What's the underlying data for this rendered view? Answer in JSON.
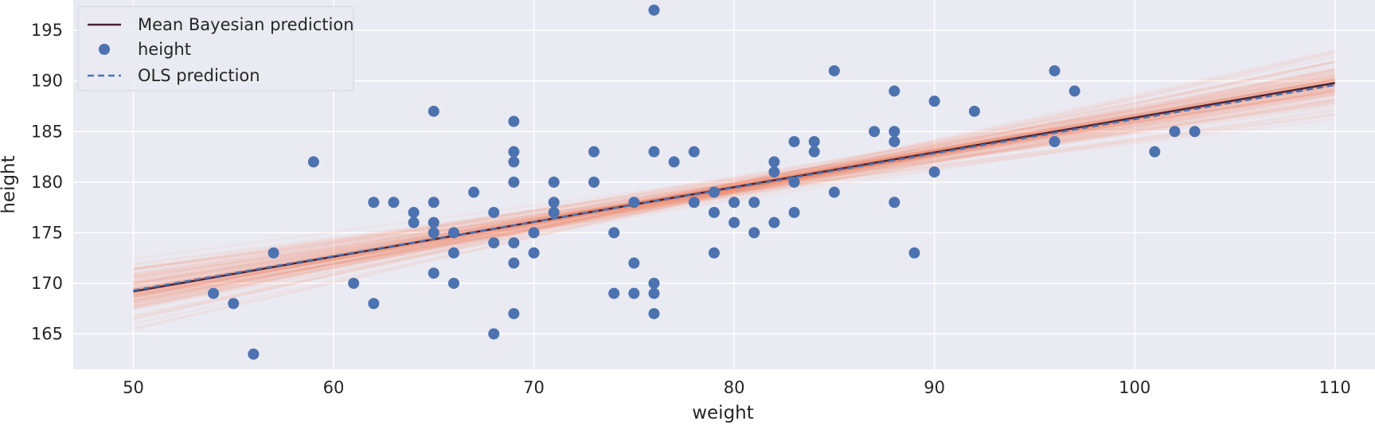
{
  "chart_data": {
    "type": "scatter",
    "title": "",
    "xlabel": "weight",
    "ylabel": "height",
    "xlim": [
      47,
      112
    ],
    "ylim": [
      161.5,
      198
    ],
    "xticks": [
      50,
      60,
      70,
      80,
      90,
      100,
      110
    ],
    "yticks": [
      165,
      170,
      175,
      180,
      185,
      190,
      195
    ],
    "grid": true,
    "legend_position": "top-left",
    "legend": {
      "mean_label": "Mean Bayesian prediction",
      "points_label": "height",
      "ols_label": "OLS prediction"
    },
    "colors": {
      "background": "#eaeaf2",
      "grid": "#ffffff",
      "points": "#4c72b0",
      "mean_line": "#4a2436",
      "ols_line": "#4c72b0",
      "posterior_samples": "#ff7a50"
    },
    "mean_line": {
      "x": [
        50,
        110
      ],
      "y": [
        169.2,
        189.8
      ]
    },
    "ols_line": {
      "x": [
        50,
        110
      ],
      "y": [
        169.3,
        189.6
      ]
    },
    "posterior_samples": {
      "count": 120,
      "slope_mean": 0.343,
      "slope_sd": 0.04,
      "intercept_at_80_sd": 0.45
    },
    "points": {
      "name": "height",
      "x": [
        54,
        55,
        56,
        57,
        59,
        61,
        62,
        62,
        63,
        64,
        64,
        65,
        65,
        65,
        65,
        65,
        66,
        66,
        66,
        67,
        68,
        68,
        68,
        69,
        69,
        69,
        69,
        69,
        69,
        69,
        70,
        70,
        71,
        71,
        71,
        73,
        73,
        74,
        74,
        75,
        75,
        75,
        76,
        76,
        76,
        76,
        76,
        77,
        78,
        78,
        79,
        79,
        79,
        80,
        80,
        81,
        81,
        82,
        82,
        82,
        83,
        83,
        83,
        84,
        84,
        85,
        85,
        87,
        88,
        88,
        88,
        88,
        89,
        90,
        90,
        92,
        96,
        96,
        97,
        101,
        102,
        103
      ],
      "y": [
        169,
        168,
        163,
        173,
        182,
        170,
        178,
        168,
        178,
        177,
        176,
        187,
        178,
        176,
        175,
        171,
        175,
        173,
        170,
        179,
        177,
        174,
        165,
        186,
        183,
        182,
        180,
        174,
        172,
        167,
        175,
        173,
        180,
        178,
        177,
        183,
        180,
        175,
        169,
        178,
        172,
        169,
        197,
        183,
        170,
        169,
        167,
        182,
        183,
        178,
        179,
        177,
        173,
        178,
        176,
        178,
        175,
        182,
        181,
        176,
        184,
        180,
        177,
        184,
        183,
        191,
        179,
        185,
        189,
        185,
        184,
        178,
        173,
        188,
        181,
        187,
        191,
        184,
        189,
        183,
        185,
        185
      ]
    }
  }
}
